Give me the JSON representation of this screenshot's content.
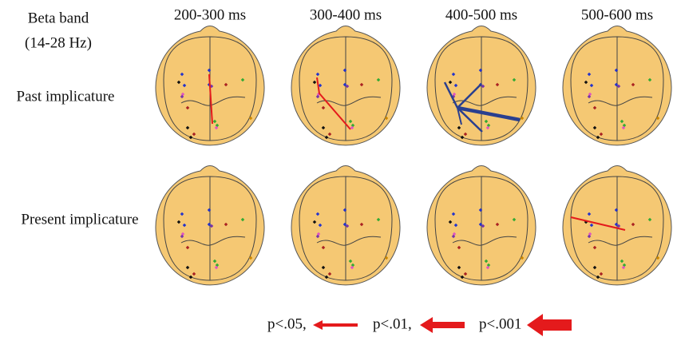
{
  "band_label": [
    "Beta band",
    "(14-28 Hz)"
  ],
  "columns": [
    "200-300 ms",
    "300-400 ms",
    "400-500 ms",
    "500-600 ms"
  ],
  "rows": [
    "Past implicature",
    "Present implicature"
  ],
  "legend": [
    "p<.05,",
    "p<.01,",
    "p<.001"
  ]
}
